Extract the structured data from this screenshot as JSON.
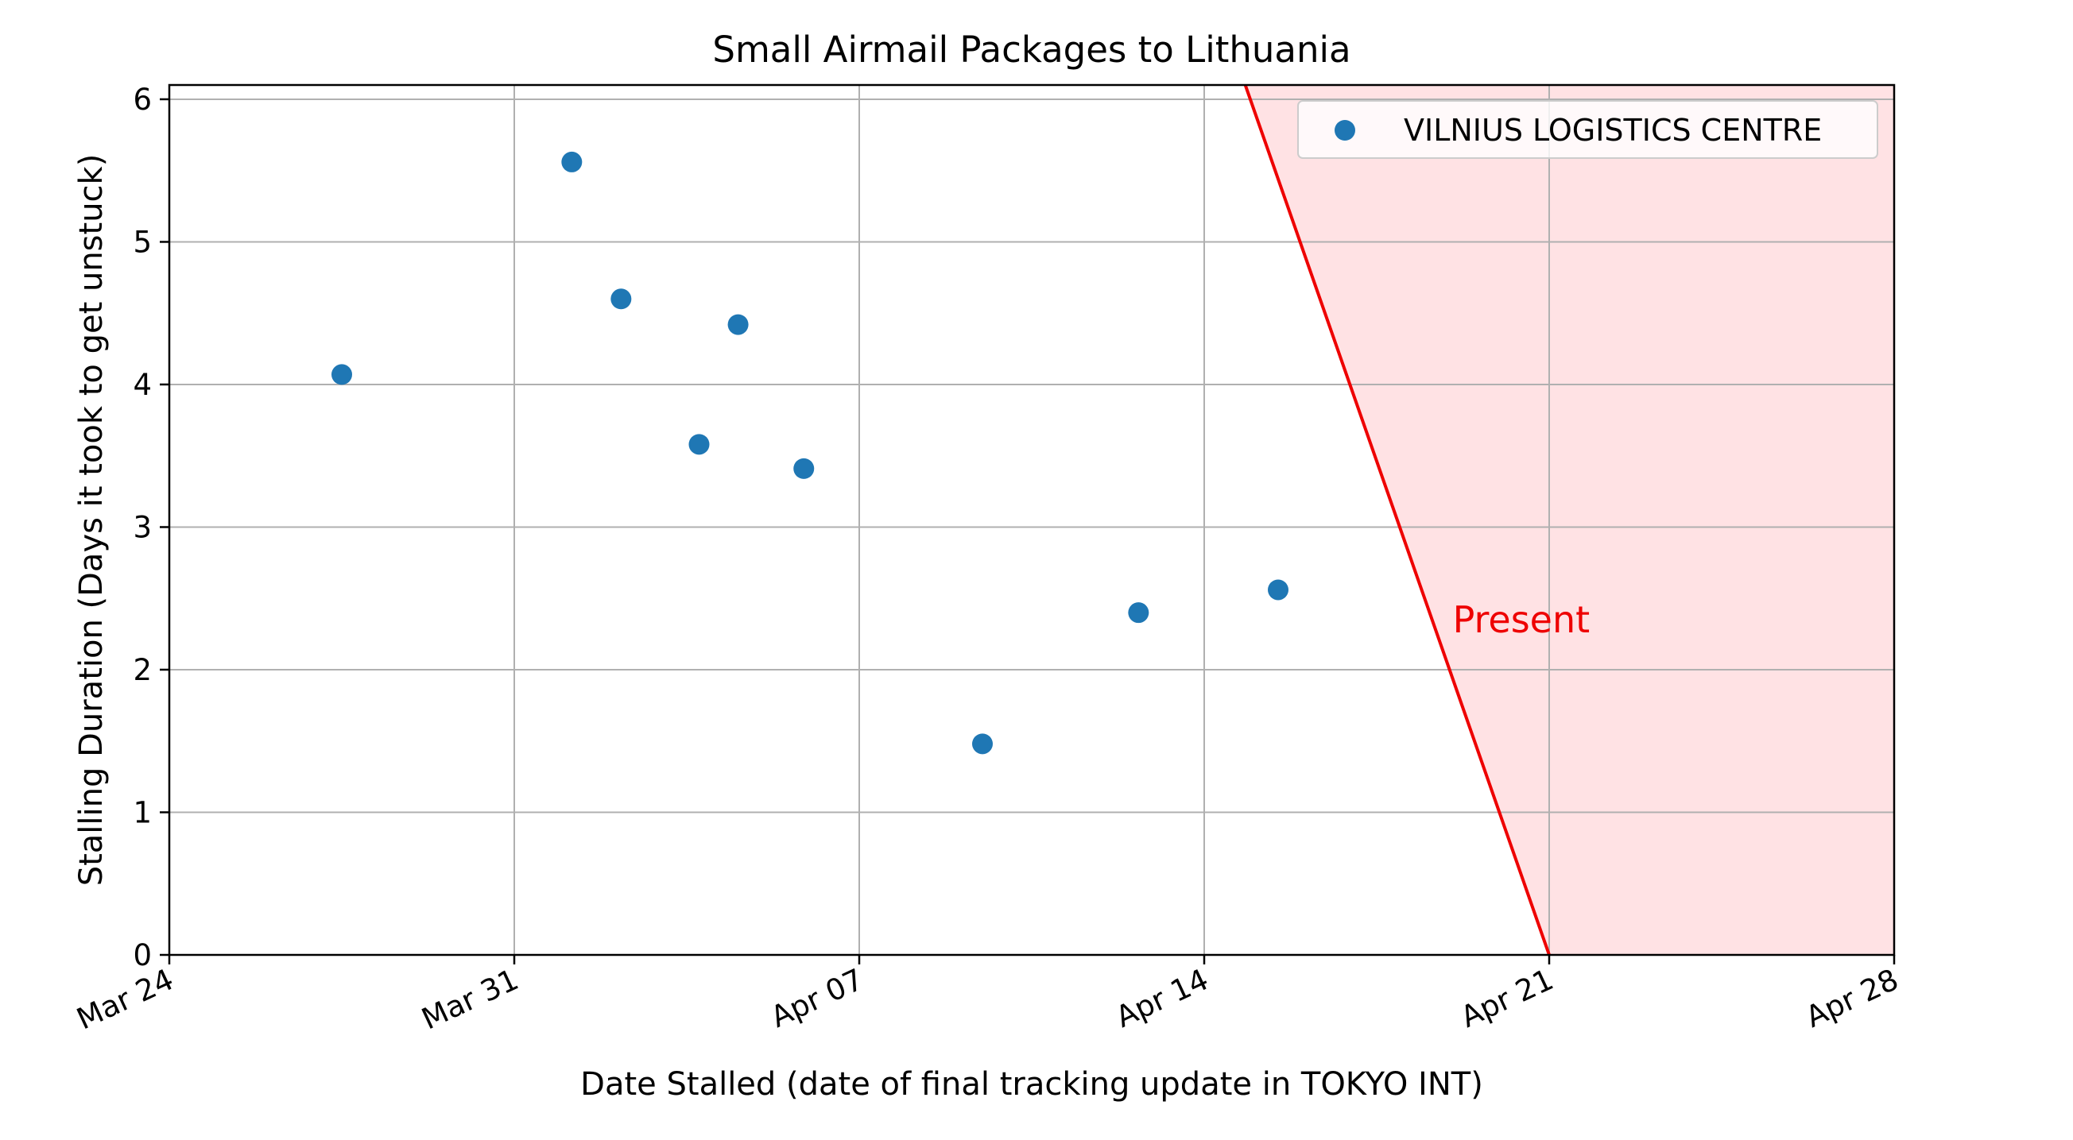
{
  "chart_data": {
    "type": "scatter",
    "title": "Small Airmail Packages to Lithuania",
    "xlabel": "Date Stalled (date of final tracking update in TOKYO INT)",
    "ylabel": "Stalling Duration (Days it took to get unstuck)",
    "x_axis": {
      "type": "date",
      "range": [
        "2024-03-24",
        "2024-04-28"
      ],
      "ticks": [
        {
          "date": "2024-03-24",
          "label": "Mar 24"
        },
        {
          "date": "2024-03-31",
          "label": "Mar 31"
        },
        {
          "date": "2024-04-07",
          "label": "Apr 07"
        },
        {
          "date": "2024-04-14",
          "label": "Apr 14"
        },
        {
          "date": "2024-04-21",
          "label": "Apr 21"
        },
        {
          "date": "2024-04-28",
          "label": "Apr 28"
        }
      ]
    },
    "y_axis": {
      "range": [
        0,
        6.1
      ],
      "ticks": [
        0,
        1,
        2,
        3,
        4,
        5,
        6
      ]
    },
    "grid": true,
    "legend_position": "upper-right",
    "series": [
      {
        "name": "VILNIUS LOGISTICS CENTRE",
        "color": "#1f77b4",
        "points": [
          {
            "x": "2024-03-27T12:00",
            "y": 4.07
          },
          {
            "x": "2024-04-01T04:00",
            "y": 5.56
          },
          {
            "x": "2024-04-02T04:00",
            "y": 4.6
          },
          {
            "x": "2024-04-03T18:00",
            "y": 3.58
          },
          {
            "x": "2024-04-04T13:00",
            "y": 4.42
          },
          {
            "x": "2024-04-05T21:00",
            "y": 3.41
          },
          {
            "x": "2024-04-09T12:00",
            "y": 1.48
          },
          {
            "x": "2024-04-12T16:00",
            "y": 2.4
          },
          {
            "x": "2024-04-15T12:00",
            "y": 2.56
          }
        ]
      }
    ],
    "present_region": {
      "label": "Present",
      "line_color": "#ee0000",
      "fill_color": "#ffe2e4",
      "line_top": {
        "x": "2024-04-14T20:00",
        "y": 6.1
      },
      "line_bottom": {
        "x": "2024-04-21",
        "y": 0
      },
      "label_position": {
        "x": "2024-04-19T01:00",
        "y": 2.35
      }
    }
  }
}
